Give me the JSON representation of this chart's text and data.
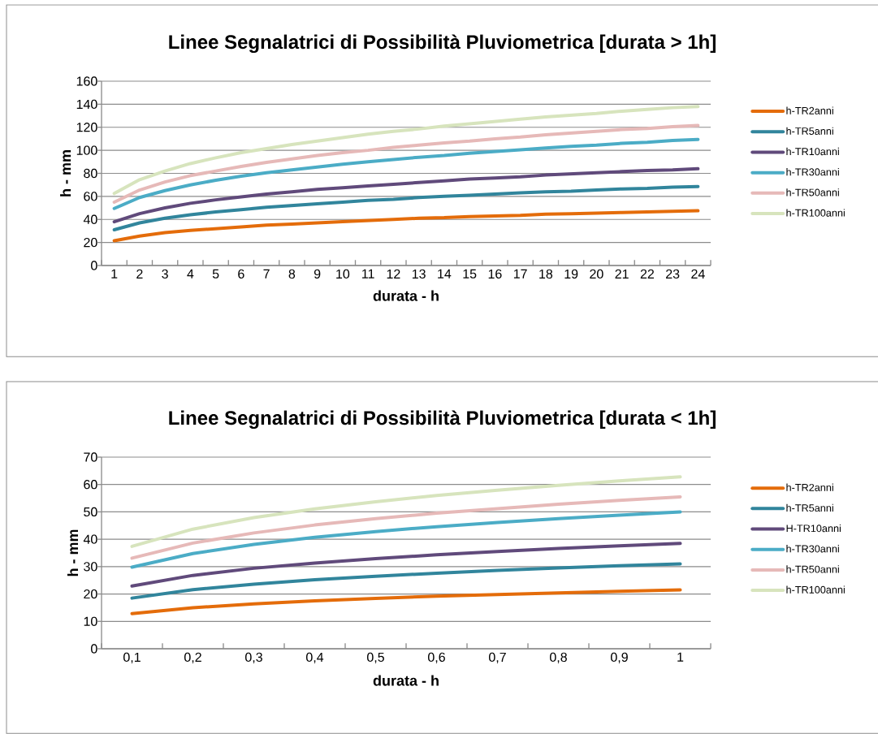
{
  "chart_data": [
    {
      "type": "line",
      "title": "Linee Segnalatrici di Possibilità Pluviometrica [durata > 1h]",
      "xlabel": "durata - h",
      "ylabel": "h - mm",
      "categories": [
        "1",
        "2",
        "3",
        "4",
        "5",
        "6",
        "7",
        "8",
        "9",
        "10",
        "11",
        "12",
        "13",
        "14",
        "15",
        "16",
        "17",
        "18",
        "19",
        "20",
        "21",
        "22",
        "23",
        "24"
      ],
      "ylim": [
        0,
        160
      ],
      "yticks": [
        0,
        20,
        40,
        60,
        80,
        100,
        120,
        140,
        160
      ],
      "grid": "y",
      "legend": "right",
      "series": [
        {
          "name": "h-TR2anni",
          "color": "#e46c0a",
          "values": [
            21.5,
            25.5,
            28.5,
            30.5,
            32,
            33.5,
            35,
            36,
            37,
            38,
            39,
            40,
            41,
            41.5,
            42.5,
            43,
            43.5,
            44.5,
            45,
            45.5,
            46,
            46.5,
            47,
            47.5
          ]
        },
        {
          "name": "h-TR5anni",
          "color": "#31859c",
          "values": [
            31,
            37,
            41,
            44,
            46.5,
            48.5,
            50.5,
            52,
            53.5,
            55,
            56.5,
            57.5,
            59,
            60,
            61,
            62,
            63,
            64,
            64.5,
            65.5,
            66.5,
            67,
            68,
            68.5
          ]
        },
        {
          "name": "h-TR10anni",
          "color": "#604a7b",
          "values": [
            38,
            45,
            50,
            54,
            57,
            59.5,
            62,
            64,
            66,
            67.5,
            69,
            70.5,
            72,
            73.5,
            75,
            76,
            77,
            78.5,
            79.5,
            80.5,
            81.5,
            82.5,
            83,
            84
          ]
        },
        {
          "name": "h-TR30anni",
          "color": "#4bacc6",
          "values": [
            49.5,
            59,
            65,
            70,
            74,
            77.5,
            80.5,
            83,
            85.5,
            88,
            90,
            92,
            94,
            95.5,
            97.5,
            99,
            100.5,
            102,
            103.5,
            104.5,
            106,
            107,
            108.5,
            109.5
          ]
        },
        {
          "name": "h-TR50anni",
          "color": "#e6b9b8",
          "values": [
            55,
            65.5,
            72.5,
            78,
            82,
            86,
            89.5,
            92.5,
            95.5,
            98,
            100,
            102.5,
            104.5,
            106.5,
            108,
            110,
            111.5,
            113.5,
            115,
            116.5,
            118,
            119,
            120.5,
            121.5
          ]
        },
        {
          "name": "h-TR100anni",
          "color": "#d7e4bd",
          "values": [
            62.5,
            74.5,
            82,
            88.5,
            93.5,
            98,
            101.5,
            105,
            108,
            111,
            114,
            116.5,
            118.5,
            121,
            123,
            125,
            127,
            129,
            130.5,
            132,
            134,
            135.5,
            137,
            138
          ]
        }
      ]
    },
    {
      "type": "line",
      "title": "Linee Segnalatrici di Possibilità Pluviometrica [durata < 1h]",
      "xlabel": "durata - h",
      "ylabel": "h - mm",
      "categories": [
        "0,1",
        "0,2",
        "0,3",
        "0,4",
        "0,5",
        "0,6",
        "0,7",
        "0,8",
        "0,9",
        "1"
      ],
      "ylim": [
        0,
        70
      ],
      "yticks": [
        0,
        10,
        20,
        30,
        40,
        50,
        60,
        70
      ],
      "grid": "y",
      "legend": "right",
      "series": [
        {
          "name": "h-TR2anni",
          "color": "#e46c0a",
          "values": [
            12.8,
            15,
            16.4,
            17.5,
            18.4,
            19.2,
            19.8,
            20.4,
            21,
            21.5
          ]
        },
        {
          "name": "h-TR5anni",
          "color": "#31859c",
          "values": [
            18.5,
            21.6,
            23.6,
            25.2,
            26.5,
            27.6,
            28.6,
            29.5,
            30.3,
            31
          ]
        },
        {
          "name": "H-TR10anni",
          "color": "#604a7b",
          "values": [
            22.9,
            26.8,
            29.4,
            31.3,
            32.9,
            34.3,
            35.5,
            36.6,
            37.6,
            38.5
          ]
        },
        {
          "name": "h-TR30anni",
          "color": "#4bacc6",
          "values": [
            29.8,
            34.8,
            38.1,
            40.7,
            42.8,
            44.6,
            46.1,
            47.5,
            48.8,
            50
          ]
        },
        {
          "name": "h-TR50anni",
          "color": "#e6b9b8",
          "values": [
            33.1,
            38.6,
            42.3,
            45.2,
            47.5,
            49.5,
            51.2,
            52.8,
            54.2,
            55.5
          ]
        },
        {
          "name": "h-TR100anni",
          "color": "#d7e4bd",
          "values": [
            37.4,
            43.7,
            47.9,
            51.1,
            53.7,
            56,
            57.9,
            59.7,
            61.3,
            62.8
          ]
        }
      ]
    }
  ]
}
